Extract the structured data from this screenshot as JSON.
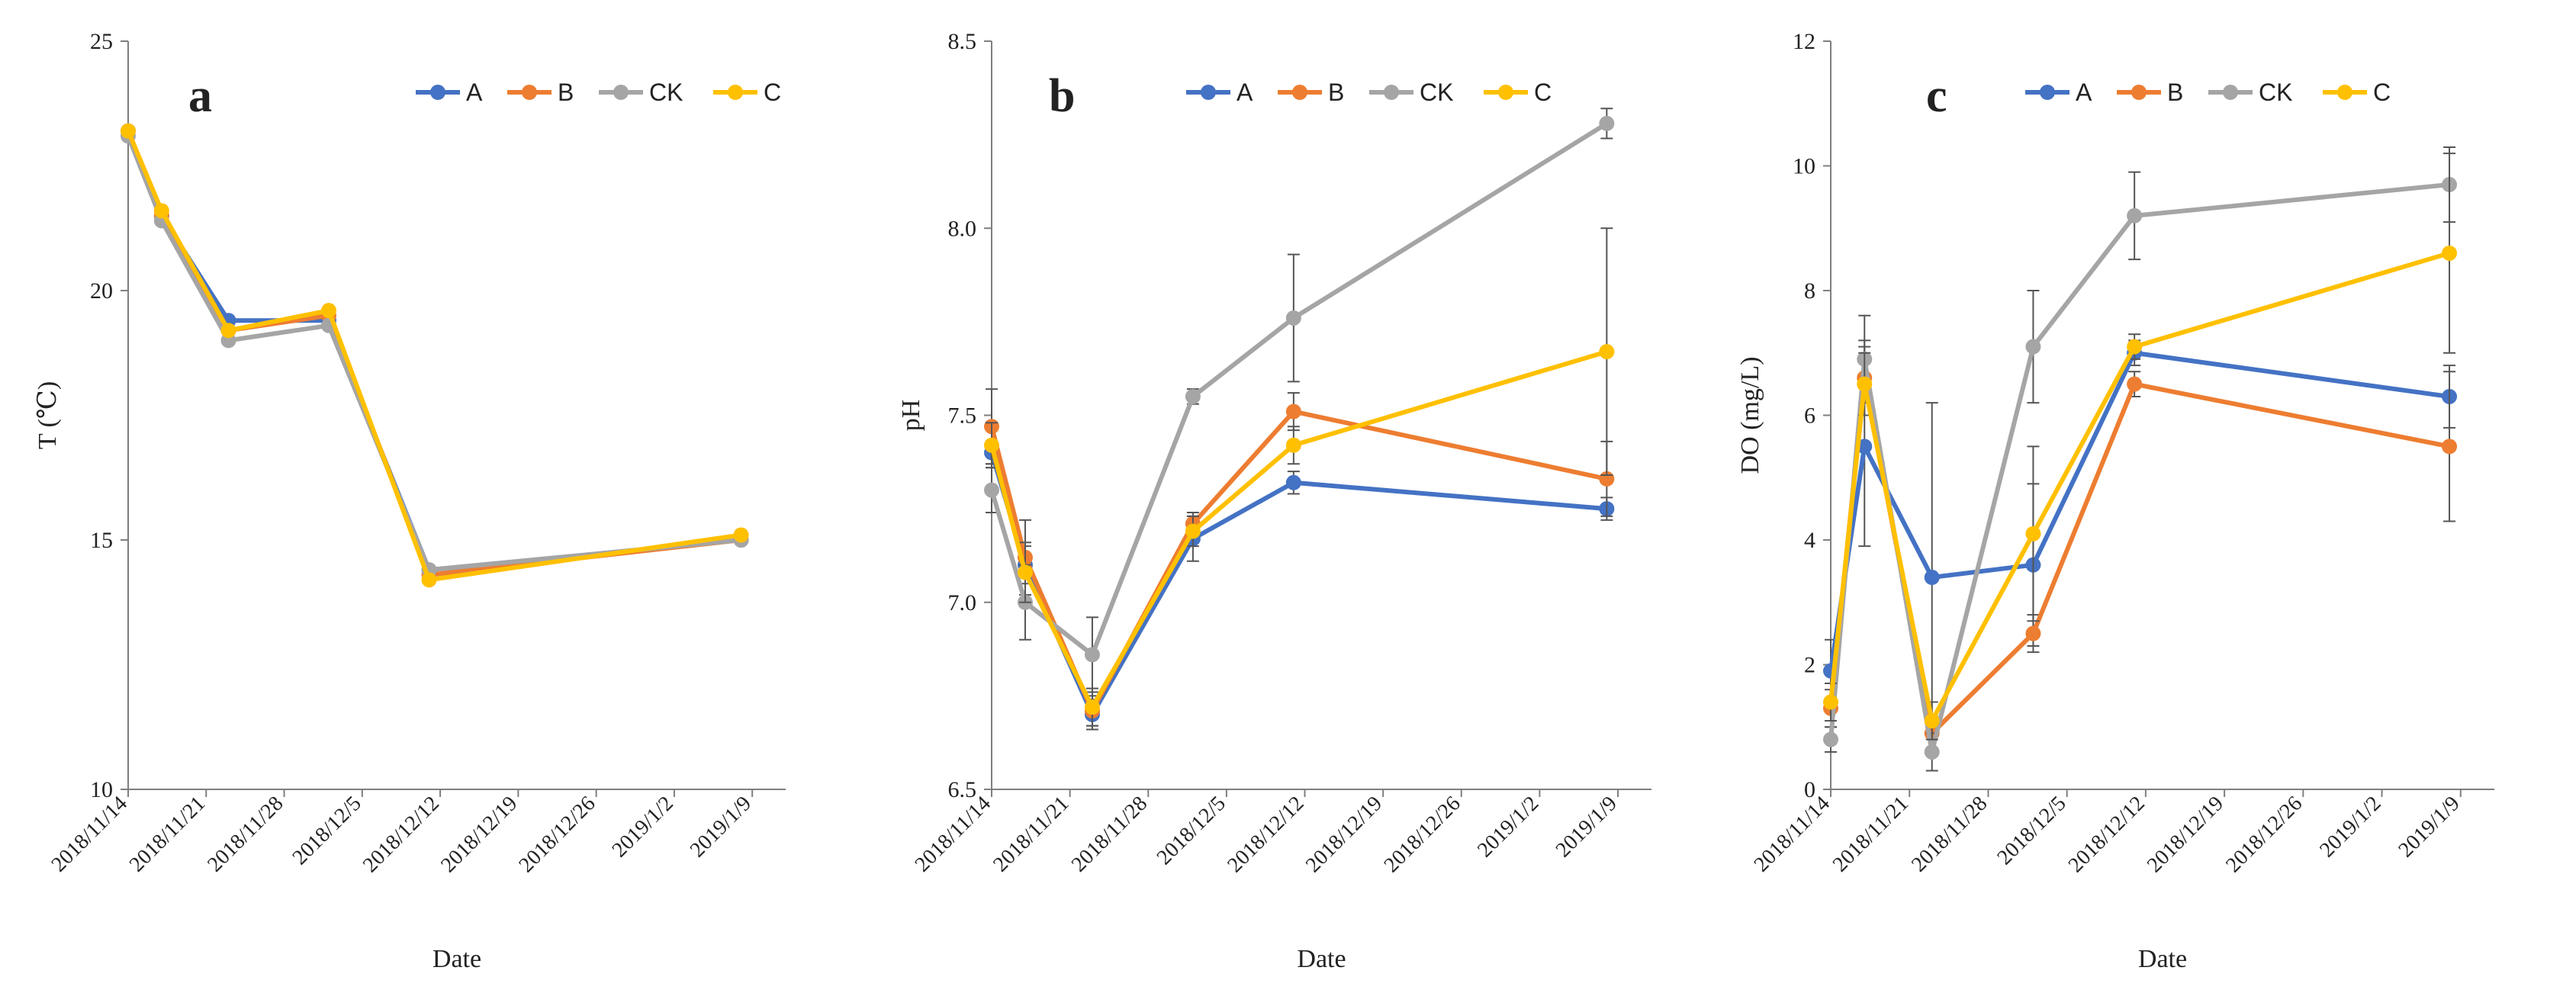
{
  "colors": {
    "A": "#4472C4",
    "B": "#ED7D31",
    "CK": "#A5A5A5",
    "C": "#FFC000"
  },
  "chart_data": [
    {
      "type": "line",
      "panel_label": "a",
      "title": "",
      "xlabel": "Date",
      "ylabel": "T (℃)",
      "ylim": [
        10,
        25
      ],
      "yticks": [
        10,
        15,
        20,
        25
      ],
      "ytick_labels": [
        "10",
        "15",
        "20",
        "25"
      ],
      "xticks": [
        "2018-11-14",
        "2018-11-21",
        "2018-11-28",
        "2018-12-05",
        "2018-12-12",
        "2018-12-19",
        "2018-12-26",
        "2019-01-02",
        "2019-01-09"
      ],
      "xtick_labels": [
        "2018/11/14",
        "2018/11/21",
        "2018/11/28",
        "2018/12/5",
        "2018/12/12",
        "2018/12/19",
        "2018/12/26",
        "2019/1/2",
        "2019/1/9"
      ],
      "xlim": [
        "2018-11-14",
        "2019-01-12"
      ],
      "grid": false,
      "legend": "top-right",
      "x": [
        "2018-11-14",
        "2018-11-17",
        "2018-11-23",
        "2018-12-02",
        "2018-12-11",
        "2019-01-08"
      ],
      "series": [
        {
          "name": "A",
          "values": [
            23.2,
            21.5,
            19.4,
            19.4,
            14.4,
            15.0
          ],
          "err": []
        },
        {
          "name": "B",
          "values": [
            23.2,
            21.5,
            19.2,
            19.5,
            14.3,
            15.0
          ],
          "err": []
        },
        {
          "name": "CK",
          "values": [
            23.1,
            21.4,
            19.0,
            19.3,
            14.4,
            15.0
          ],
          "err": []
        },
        {
          "name": "C",
          "values": [
            23.2,
            21.6,
            19.2,
            19.6,
            14.2,
            15.1
          ],
          "err": []
        }
      ]
    },
    {
      "type": "line",
      "panel_label": "b",
      "title": "",
      "xlabel": "Date",
      "ylabel": "pH",
      "ylim": [
        6.5,
        8.5
      ],
      "yticks": [
        6.5,
        7.0,
        7.5,
        8.0,
        8.5
      ],
      "ytick_labels": [
        "6.5",
        "7.0",
        "7.5",
        "8.0",
        "8.5"
      ],
      "xticks": [
        "2018-11-14",
        "2018-11-21",
        "2018-11-28",
        "2018-12-05",
        "2018-12-12",
        "2018-12-19",
        "2018-12-26",
        "2019-01-02",
        "2019-01-09"
      ],
      "xtick_labels": [
        "2018/11/14",
        "2018/11/21",
        "2018/11/28",
        "2018/12/5",
        "2018/12/12",
        "2018/12/19",
        "2018/12/26",
        "2019/1/2",
        "2019/1/9"
      ],
      "xlim": [
        "2018-11-14",
        "2019-01-12"
      ],
      "grid": false,
      "legend": "top-right",
      "x": [
        "2018-11-14",
        "2018-11-17",
        "2018-11-23",
        "2018-12-02",
        "2018-12-11",
        "2019-01-08"
      ],
      "series": [
        {
          "name": "A",
          "values": [
            7.4,
            7.1,
            6.7,
            7.17,
            7.32,
            7.25
          ],
          "err": [
            0.03,
            0.05,
            0.04,
            0.06,
            0.03,
            0.03
          ]
        },
        {
          "name": "B",
          "values": [
            7.47,
            7.12,
            6.71,
            7.21,
            7.51,
            7.33
          ],
          "err": [
            0.1,
            0.1,
            0.04,
            0.03,
            0.05,
            0.1
          ]
        },
        {
          "name": "CK",
          "values": [
            7.3,
            7.0,
            6.86,
            7.55,
            7.76,
            8.28
          ],
          "err": [
            0.06,
            0.1,
            0.1,
            0.02,
            0.17,
            0.04
          ]
        },
        {
          "name": "C",
          "values": [
            7.42,
            7.08,
            6.72,
            7.19,
            7.42,
            7.67
          ],
          "err": [
            0.06,
            0.08,
            0.05,
            0.04,
            0.05,
            0.33
          ]
        }
      ]
    },
    {
      "type": "line",
      "panel_label": "c",
      "title": "",
      "xlabel": "Date",
      "ylabel": "DO (mg/L)",
      "ylim": [
        0,
        12
      ],
      "yticks": [
        0,
        2,
        4,
        6,
        8,
        10,
        12
      ],
      "ytick_labels": [
        "0",
        "2",
        "4",
        "6",
        "8",
        "10",
        "12"
      ],
      "xticks": [
        "2018-11-14",
        "2018-11-21",
        "2018-11-28",
        "2018-12-05",
        "2018-12-12",
        "2018-12-19",
        "2018-12-26",
        "2019-01-02",
        "2019-01-09"
      ],
      "xtick_labels": [
        "2018/11/14",
        "2018/11/21",
        "2018/11/28",
        "2018/12/5",
        "2018/12/12",
        "2018/12/19",
        "2018/12/26",
        "2019/1/2",
        "2019/1/9"
      ],
      "xlim": [
        "2018-11-14",
        "2019-01-12"
      ],
      "grid": false,
      "legend": "top-right",
      "x": [
        "2018-11-14",
        "2018-11-17",
        "2018-11-23",
        "2018-12-02",
        "2018-12-11",
        "2019-01-08"
      ],
      "series": [
        {
          "name": "A",
          "values": [
            1.9,
            5.5,
            3.4,
            3.6,
            7.0,
            6.3
          ],
          "err": [
            0.5,
            1.6,
            2.8,
            1.3,
            0.2,
            0.5
          ]
        },
        {
          "name": "B",
          "values": [
            1.3,
            6.6,
            0.9,
            2.5,
            6.5,
            5.5
          ],
          "err": [
            0.3,
            0.6,
            0.3,
            0.3,
            0.2,
            1.2
          ]
        },
        {
          "name": "CK",
          "values": [
            0.8,
            6.9,
            0.6,
            7.1,
            9.2,
            9.7
          ],
          "err": [
            0.2,
            0.7,
            0.3,
            0.9,
            0.7,
            0.6
          ]
        },
        {
          "name": "C",
          "values": [
            1.4,
            6.5,
            1.1,
            4.1,
            7.1,
            8.6
          ],
          "err": [
            0.3,
            0.5,
            0.3,
            1.4,
            0.2,
            1.6
          ]
        }
      ]
    }
  ]
}
